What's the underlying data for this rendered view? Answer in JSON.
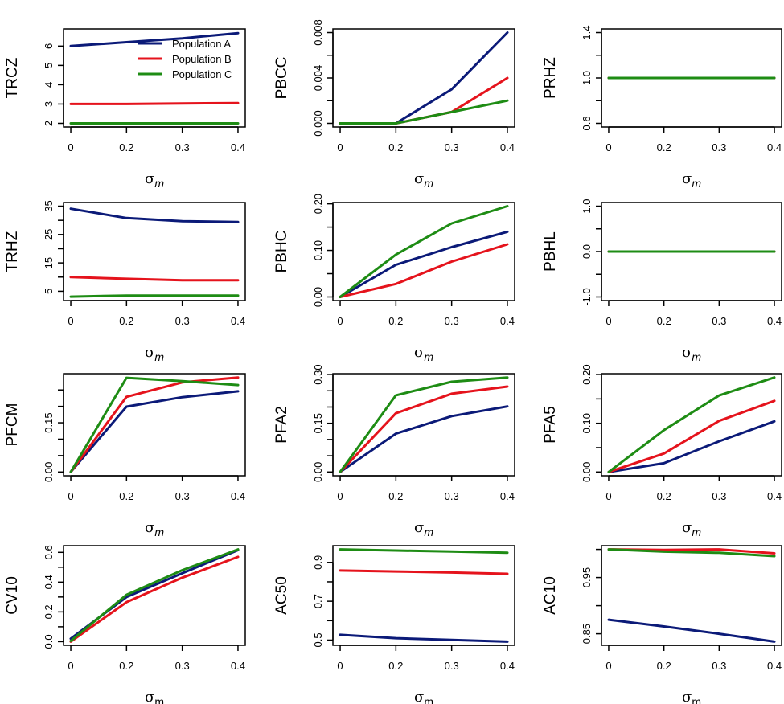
{
  "chart_data": {
    "type": "line",
    "layout": "4x3 grid of small-multiple line charts",
    "x": [
      0,
      0.2,
      0.3,
      0.4
    ],
    "x_tick_labels": [
      "0",
      "0.2",
      "0.3",
      "0.4"
    ],
    "x_axis_note": "x values plotted at equally spaced positions",
    "series_names": [
      "Population A",
      "Population B",
      "Population C"
    ],
    "series_colors": [
      "#0b1a78",
      "#e5131c",
      "#1e8c14"
    ],
    "legend": {
      "panel": "TRCZ",
      "placement": "top-right",
      "entries": [
        "Population A",
        "Population B",
        "Population C"
      ]
    },
    "panels": [
      {
        "ylabel": "TRCZ",
        "xlabel_base": "σ",
        "xlabel_sub": "m",
        "sub_italic": true,
        "ylim": [
          2,
          6.7
        ],
        "yticks": [
          2,
          3,
          4,
          5,
          6
        ],
        "ytick_labels": [
          "2",
          "3",
          "4",
          "5",
          "6"
        ],
        "series": [
          {
            "name": "Population A",
            "values": [
              6.0,
              6.2,
              6.4,
              6.67
            ]
          },
          {
            "name": "Population B",
            "values": [
              3.0,
              3.0,
              3.03,
              3.05
            ]
          },
          {
            "name": "Population C",
            "values": [
              2.0,
              2.0,
              2.0,
              2.0
            ]
          }
        ]
      },
      {
        "ylabel": "PBCC",
        "xlabel_base": "σ",
        "xlabel_sub": "m",
        "sub_italic": true,
        "ylim": [
          0,
          0.008
        ],
        "yticks": [
          0,
          0.002,
          0.004,
          0.006,
          0.008
        ],
        "ytick_labels": [
          "0.000",
          "",
          "0.004",
          "",
          "0.008"
        ],
        "series": [
          {
            "name": "Population A",
            "values": [
              0.0,
              0.0,
              0.003,
              0.008
            ]
          },
          {
            "name": "Population B",
            "values": [
              0.0,
              0.0,
              0.001,
              0.004
            ]
          },
          {
            "name": "Population C",
            "values": [
              0.0,
              0.0,
              0.001,
              0.002
            ]
          }
        ]
      },
      {
        "ylabel": "PRHZ",
        "xlabel_base": "σ",
        "xlabel_sub": "m",
        "sub_italic": true,
        "ylim": [
          0.6,
          1.4
        ],
        "yticks": [
          0.6,
          0.8,
          1.0,
          1.2,
          1.4
        ],
        "ytick_labels": [
          "0.6",
          "",
          "1.0",
          "",
          "1.4"
        ],
        "series": [
          {
            "name": "Population A",
            "values": [
              1.0,
              1.0,
              1.0,
              1.0
            ]
          },
          {
            "name": "Population B",
            "values": [
              1.0,
              1.0,
              1.0,
              1.0
            ]
          },
          {
            "name": "Population C",
            "values": [
              1.0,
              1.0,
              1.0,
              1.0
            ]
          }
        ]
      },
      {
        "ylabel": "TRHZ",
        "xlabel_base": "σ",
        "xlabel_sub": "m",
        "sub_italic": true,
        "ylim": [
          3,
          35
        ],
        "yticks": [
          5,
          10,
          15,
          20,
          25,
          30,
          35
        ],
        "ytick_labels": [
          "5",
          "",
          "15",
          "",
          "25",
          "",
          "35"
        ],
        "series": [
          {
            "name": "Population A",
            "values": [
              34.1,
              30.8,
              29.7,
              29.4
            ]
          },
          {
            "name": "Population B",
            "values": [
              10.0,
              9.4,
              8.9,
              8.9
            ]
          },
          {
            "name": "Population C",
            "values": [
              3.1,
              3.5,
              3.5,
              3.5
            ]
          }
        ]
      },
      {
        "ylabel": "PBHC",
        "xlabel_base": "σ",
        "xlabel_sub": "m",
        "sub_italic": true,
        "ylim": [
          0,
          0.195
        ],
        "yticks": [
          0,
          0.05,
          0.1,
          0.15,
          0.2
        ],
        "ytick_labels": [
          "0.00",
          "",
          "0.10",
          "",
          "0.20"
        ],
        "series": [
          {
            "name": "Population A",
            "values": [
              0.0,
              0.069,
              0.107,
              0.14
            ]
          },
          {
            "name": "Population B",
            "values": [
              0.0,
              0.028,
              0.076,
              0.113
            ]
          },
          {
            "name": "Population C",
            "values": [
              0.0,
              0.091,
              0.158,
              0.195
            ]
          }
        ]
      },
      {
        "ylabel": "PBHL",
        "xlabel_base": "σ",
        "xlabel_sub": "m",
        "sub_italic": true,
        "ylim": [
          -1.0,
          1.0
        ],
        "yticks": [
          -1.0,
          -0.5,
          0.0,
          0.5,
          1.0
        ],
        "ytick_labels": [
          "-1.0",
          "",
          "0.0",
          "",
          "1.0"
        ],
        "series": [
          {
            "name": "Population A",
            "values": [
              0.0,
              0.0,
              0.0,
              0.0
            ]
          },
          {
            "name": "Population B",
            "values": [
              0.0,
              0.0,
              0.0,
              0.0
            ]
          },
          {
            "name": "Population C",
            "values": [
              0.0,
              0.0,
              0.0,
              0.0
            ]
          }
        ]
      },
      {
        "ylabel": "PFCM",
        "xlabel_base": "σ",
        "xlabel_sub": "m",
        "sub_italic": true,
        "ylim": [
          0,
          0.288
        ],
        "yticks": [
          0,
          0.05,
          0.1,
          0.15,
          0.2,
          0.25
        ],
        "ytick_labels": [
          "0.00",
          "",
          "",
          "0.15",
          "",
          ""
        ],
        "series": [
          {
            "name": "Population A",
            "values": [
              0.0,
              0.199,
              0.228,
              0.246
            ]
          },
          {
            "name": "Population B",
            "values": [
              0.0,
              0.229,
              0.273,
              0.288
            ]
          },
          {
            "name": "Population C",
            "values": [
              0.0,
              0.287,
              0.277,
              0.265
            ]
          }
        ]
      },
      {
        "ylabel": "PFA2",
        "xlabel_base": "σ",
        "xlabel_sub": "m",
        "sub_italic": true,
        "ylim": [
          0,
          0.291
        ],
        "yticks": [
          0,
          0.05,
          0.1,
          0.15,
          0.2,
          0.25,
          0.3
        ],
        "ytick_labels": [
          "0.00",
          "",
          "",
          "0.15",
          "",
          "",
          "0.30"
        ],
        "series": [
          {
            "name": "Population A",
            "values": [
              0.0,
              0.118,
              0.172,
              0.202
            ]
          },
          {
            "name": "Population B",
            "values": [
              0.0,
              0.181,
              0.241,
              0.263
            ]
          },
          {
            "name": "Population C",
            "values": [
              0.0,
              0.236,
              0.278,
              0.291
            ]
          }
        ]
      },
      {
        "ylabel": "PFA5",
        "xlabel_base": "σ",
        "xlabel_sub": "m",
        "sub_italic": true,
        "ylim": [
          0,
          0.194
        ],
        "yticks": [
          0,
          0.05,
          0.1,
          0.15,
          0.2
        ],
        "ytick_labels": [
          "0.00",
          "",
          "0.10",
          "",
          "0.20"
        ],
        "series": [
          {
            "name": "Population A",
            "values": [
              0.0,
              0.018,
              0.063,
              0.104
            ]
          },
          {
            "name": "Population B",
            "values": [
              0.0,
              0.038,
              0.105,
              0.146
            ]
          },
          {
            "name": "Population C",
            "values": [
              0.0,
              0.086,
              0.157,
              0.194
            ]
          }
        ]
      },
      {
        "ylabel": "CV10",
        "xlabel_base": "σ",
        "xlabel_sub": "m",
        "sub_italic": false,
        "ylim": [
          0,
          0.62
        ],
        "yticks": [
          0,
          0.1,
          0.2,
          0.3,
          0.4,
          0.5,
          0.6
        ],
        "ytick_labels": [
          "0.0",
          "",
          "0.2",
          "",
          "0.4",
          "",
          "0.6"
        ],
        "series": [
          {
            "name": "Population A",
            "values": [
              0.02,
              0.3,
              0.46,
              0.615
            ]
          },
          {
            "name": "Population B",
            "values": [
              0.0,
              0.265,
              0.43,
              0.57
            ]
          },
          {
            "name": "Population C",
            "values": [
              0.005,
              0.315,
              0.48,
              0.62
            ]
          }
        ]
      },
      {
        "ylabel": "AC50",
        "xlabel_base": "σ",
        "xlabel_sub": "m",
        "sub_italic": false,
        "ylim": [
          0.492,
          0.967
        ],
        "yticks": [
          0.5,
          0.6,
          0.7,
          0.8,
          0.9
        ],
        "ytick_labels": [
          "0.5",
          "",
          "0.7",
          "",
          "0.9"
        ],
        "series": [
          {
            "name": "Population A",
            "values": [
              0.527,
              0.51,
              0.501,
              0.492
            ]
          },
          {
            "name": "Population B",
            "values": [
              0.858,
              0.853,
              0.848,
              0.841
            ]
          },
          {
            "name": "Population C",
            "values": [
              0.967,
              0.961,
              0.956,
              0.95
            ]
          }
        ]
      },
      {
        "ylabel": "AC10",
        "xlabel_base": "σ",
        "xlabel_sub": "m",
        "sub_italic": false,
        "ylim": [
          0.836,
          1.0
        ],
        "yticks": [
          0.85,
          0.9,
          0.95,
          1.0
        ],
        "ytick_labels": [
          "0.85",
          "",
          "0.95",
          ""
        ],
        "series": [
          {
            "name": "Population A",
            "values": [
              0.875,
              0.863,
              0.85,
              0.836
            ]
          },
          {
            "name": "Population B",
            "values": [
              1.0,
              0.999,
              1.0,
              0.993
            ]
          },
          {
            "name": "Population C",
            "values": [
              1.0,
              0.996,
              0.994,
              0.988
            ]
          }
        ]
      }
    ]
  }
}
